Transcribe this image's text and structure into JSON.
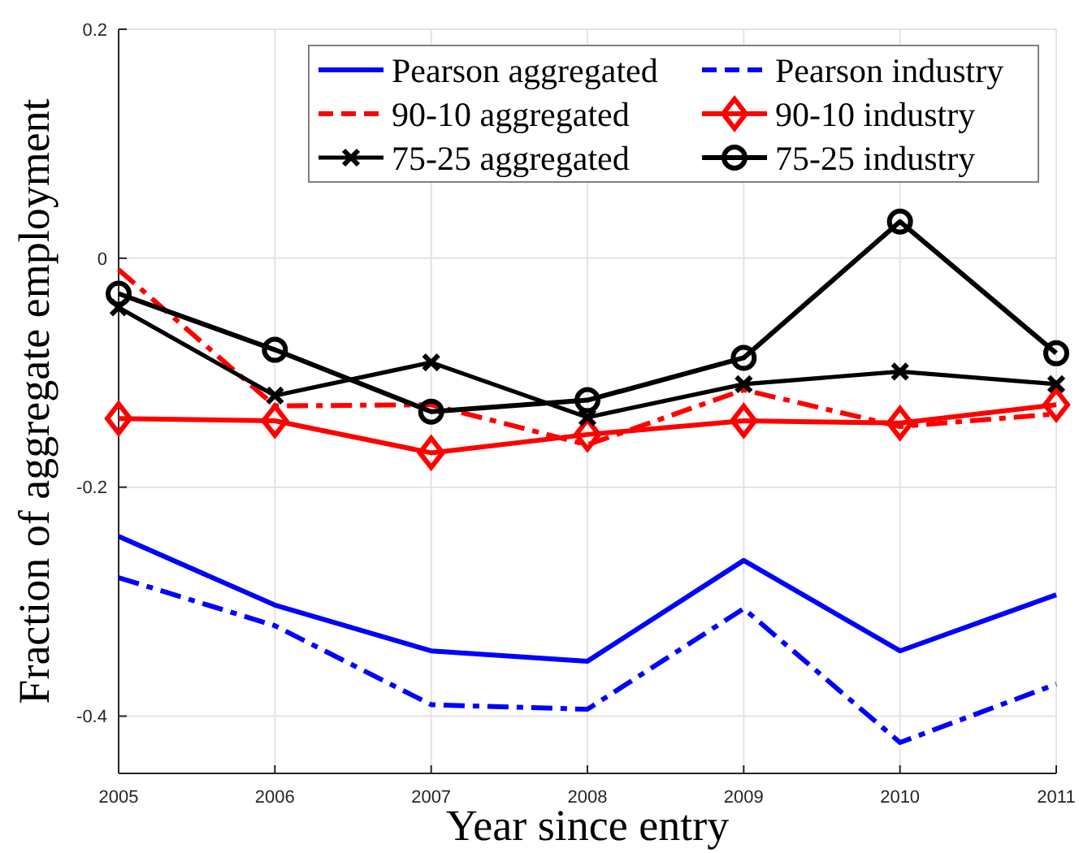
{
  "chart_data": {
    "type": "line",
    "xlabel": "Year since entry",
    "ylabel": "Fraction of aggregate employment",
    "x": [
      2005,
      2006,
      2007,
      2008,
      2009,
      2010,
      2011
    ],
    "xlim": [
      2005,
      2011
    ],
    "xticks": [
      2005,
      2006,
      2007,
      2008,
      2009,
      2010,
      2011
    ],
    "ylim": [
      -0.45,
      0.2
    ],
    "yticks": [
      -0.4,
      -0.2,
      0,
      0.2
    ],
    "grid": true,
    "legend": "top right",
    "series": [
      {
        "name": "Pearson aggregated",
        "color": "#0000ff",
        "line_style": "solid",
        "marker": "none",
        "values": [
          -0.243,
          -0.303,
          -0.343,
          -0.352,
          -0.264,
          -0.343,
          -0.294
        ]
      },
      {
        "name": "Pearson industry",
        "color": "#0000ff",
        "line_style": "dashed",
        "marker": "none",
        "values": [
          -0.279,
          -0.321,
          -0.39,
          -0.394,
          -0.306,
          -0.423,
          -0.372
        ]
      },
      {
        "name": "90-10 aggregated",
        "color": "#ff0000",
        "line_style": "dashed",
        "marker": "none",
        "values": [
          -0.01,
          -0.129,
          -0.128,
          -0.163,
          -0.115,
          -0.147,
          -0.136
        ]
      },
      {
        "name": "90-10 industry",
        "color": "#ff0000",
        "line_style": "solid",
        "marker": "diamond",
        "values": [
          -0.14,
          -0.142,
          -0.17,
          -0.154,
          -0.142,
          -0.144,
          -0.128
        ]
      },
      {
        "name": "75-25 aggregated",
        "color": "#000000",
        "line_style": "solid",
        "marker": "cross",
        "values": [
          -0.043,
          -0.12,
          -0.091,
          -0.139,
          -0.11,
          -0.099,
          -0.11
        ]
      },
      {
        "name": "75-25 industry",
        "color": "#000000",
        "line_style": "solid",
        "marker": "circle",
        "values": [
          -0.031,
          -0.08,
          -0.134,
          -0.124,
          -0.087,
          0.032,
          -0.083
        ]
      }
    ]
  }
}
